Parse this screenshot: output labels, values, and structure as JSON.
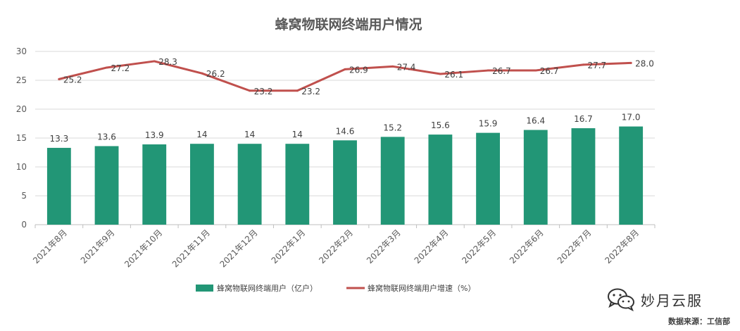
{
  "chart_data": {
    "type": "bar",
    "title": "蜂窝物联网终端用户情况",
    "categories": [
      "2021年8月",
      "2021年9月",
      "2021年10月",
      "2021年11月",
      "2021年12月",
      "2022年1月",
      "2022年2月",
      "2022年3月",
      "2022年4月",
      "2022年5月",
      "2022年6月",
      "2022年7月",
      "2022年8月"
    ],
    "series": [
      {
        "name": "蜂窝物联网终端用户（亿户）",
        "type": "bar",
        "values": [
          13.3,
          13.6,
          13.9,
          14,
          14,
          14,
          14.6,
          15.2,
          15.6,
          15.9,
          16.4,
          16.7,
          17.0
        ],
        "labels": [
          "13.3",
          "13.6",
          "13.9",
          "14",
          "14",
          "14",
          "14.6",
          "15.2",
          "15.6",
          "15.9",
          "16.4",
          "16.7",
          "17.0"
        ],
        "color": "#229676"
      },
      {
        "name": "蜂窝物联网终端用户增速（%）",
        "type": "line",
        "values": [
          25.2,
          27.2,
          28.3,
          26.2,
          23.2,
          23.2,
          26.9,
          27.4,
          26.1,
          26.7,
          26.7,
          27.7,
          28.0
        ],
        "labels": [
          "25.2",
          "27.2",
          "28.3",
          "26.2",
          "23.2",
          "23.2",
          "26.9",
          "27.4",
          "26.1",
          "26.7",
          "26.7",
          "27.7",
          "28.0"
        ],
        "color": "#c0504d"
      }
    ],
    "ylim": [
      0,
      30
    ],
    "yticks": [
      "0",
      "5",
      "10",
      "15",
      "20",
      "25",
      "30"
    ],
    "grid": true,
    "legend_position": "bottom"
  },
  "watermark": {
    "text": "妙月云服",
    "icon": "wechat-icon"
  },
  "source_text": "数据来源：工信部"
}
